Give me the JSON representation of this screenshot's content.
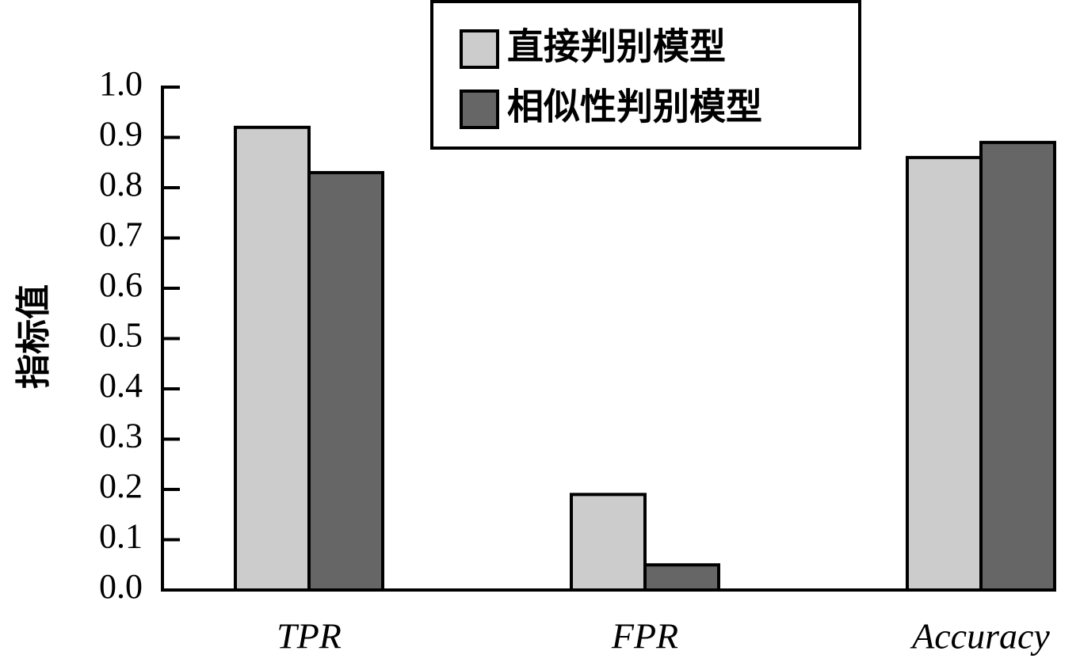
{
  "chart_data": {
    "type": "bar",
    "y_label": "指标值",
    "categories": [
      "TPR",
      "FPR",
      "Accuracy"
    ],
    "series": [
      {
        "name": "直接判别模型",
        "color": "#cccccc",
        "values": [
          0.92,
          0.19,
          0.86
        ]
      },
      {
        "name": "相似性判别模型",
        "color": "#666666",
        "values": [
          0.83,
          0.05,
          0.89
        ]
      }
    ],
    "ylim": [
      0,
      1
    ],
    "yticks": [
      {
        "value": 0,
        "label": "0.0"
      },
      0.1,
      0.2,
      0.3,
      0.4,
      0.5,
      0.6,
      0.7,
      0.8,
      0.9,
      {
        "value": 1,
        "label": "1.0"
      }
    ]
  }
}
